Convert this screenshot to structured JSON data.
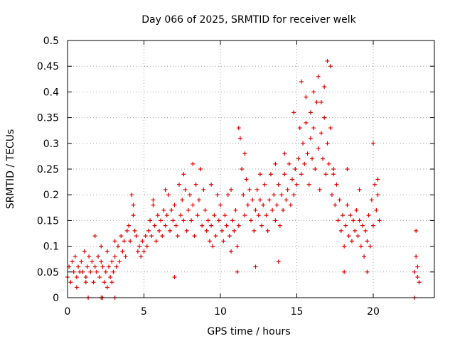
{
  "chart_data": {
    "type": "scatter",
    "title": "Day 066 of 2025, SRMTID for receiver welk",
    "xlabel": "GPS time / hours",
    "ylabel": "SRMTID / TECUs",
    "xlim": [
      0,
      24
    ],
    "ylim": [
      0,
      0.5
    ],
    "grid": true,
    "x_ticks": [
      0,
      5,
      10,
      15,
      20
    ],
    "x_tick_labels": [
      "0",
      "5",
      "10",
      "15",
      "20"
    ],
    "y_ticks": [
      0,
      0.05,
      0.1,
      0.15,
      0.2,
      0.25,
      0.3,
      0.35,
      0.4,
      0.45,
      0.5
    ],
    "y_tick_labels": [
      "0",
      "0.05",
      "0.1",
      "0.15",
      "0.2",
      "0.25",
      "0.3",
      "0.35",
      "0.4",
      "0.45",
      "0.5"
    ],
    "marker": "plus",
    "series": [
      {
        "name": "SRMTID",
        "color": "#e00000",
        "points": [
          [
            0.0,
            0.04
          ],
          [
            0.1,
            0.06
          ],
          [
            0.2,
            0.03
          ],
          [
            0.3,
            0.07
          ],
          [
            0.4,
            0.05
          ],
          [
            0.5,
            0.08
          ],
          [
            0.6,
            0.04
          ],
          [
            0.7,
            0.06
          ],
          [
            0.8,
            0.05
          ],
          [
            0.9,
            0.07
          ],
          [
            1.0,
            0.05
          ],
          [
            1.1,
            0.09
          ],
          [
            1.2,
            0.04
          ],
          [
            1.3,
            0.06
          ],
          [
            1.4,
            0.08
          ],
          [
            1.5,
            0.05
          ],
          [
            1.6,
            0.07
          ],
          [
            1.7,
            0.03
          ],
          [
            1.8,
            0.06
          ],
          [
            1.9,
            0.05
          ],
          [
            2.0,
            0.08
          ],
          [
            2.1,
            0.04
          ],
          [
            2.2,
            0.07
          ],
          [
            2.3,
            0.06
          ],
          [
            2.4,
            0.03
          ],
          [
            2.5,
            0.05
          ],
          [
            2.6,
            0.09
          ],
          [
            2.7,
            0.06
          ],
          [
            2.8,
            0.04
          ],
          [
            2.9,
            0.07
          ],
          [
            3.0,
            0.05
          ],
          [
            3.1,
            0.08
          ],
          [
            3.2,
            0.06
          ],
          [
            3.3,
            0.1
          ],
          [
            3.4,
            0.07
          ],
          [
            3.5,
            0.12
          ],
          [
            3.6,
            0.09
          ],
          [
            3.7,
            0.11
          ],
          [
            3.8,
            0.08
          ],
          [
            3.9,
            0.13
          ],
          [
            4.0,
            0.14
          ],
          [
            4.1,
            0.11
          ],
          [
            4.2,
            0.2
          ],
          [
            4.3,
            0.16
          ],
          [
            4.4,
            0.13
          ],
          [
            4.5,
            0.12
          ],
          [
            4.6,
            0.09
          ],
          [
            4.7,
            0.1
          ],
          [
            4.8,
            0.08
          ],
          [
            4.9,
            0.11
          ],
          [
            5.0,
            0.09
          ],
          [
            5.1,
            0.12
          ],
          [
            5.2,
            0.1
          ],
          [
            5.3,
            0.13
          ],
          [
            5.4,
            0.15
          ],
          [
            5.5,
            0.12
          ],
          [
            5.6,
            0.18
          ],
          [
            5.7,
            0.14
          ],
          [
            5.8,
            0.11
          ],
          [
            5.9,
            0.16
          ],
          [
            6.0,
            0.13
          ],
          [
            6.1,
            0.15
          ],
          [
            6.2,
            0.12
          ],
          [
            6.3,
            0.17
          ],
          [
            6.4,
            0.14
          ],
          [
            6.5,
            0.16
          ],
          [
            6.6,
            0.2
          ],
          [
            6.7,
            0.13
          ],
          [
            6.8,
            0.17
          ],
          [
            6.9,
            0.15
          ],
          [
            7.0,
            0.18
          ],
          [
            7.1,
            0.14
          ],
          [
            7.2,
            0.12
          ],
          [
            7.3,
            0.22
          ],
          [
            7.4,
            0.16
          ],
          [
            7.5,
            0.19
          ],
          [
            7.6,
            0.15
          ],
          [
            7.7,
            0.21
          ],
          [
            7.8,
            0.13
          ],
          [
            7.9,
            0.17
          ],
          [
            8.0,
            0.2
          ],
          [
            8.1,
            0.15
          ],
          [
            8.2,
            0.18
          ],
          [
            8.3,
            0.12
          ],
          [
            8.4,
            0.22
          ],
          [
            8.5,
            0.16
          ],
          [
            8.6,
            0.19
          ],
          [
            8.7,
            0.25
          ],
          [
            8.8,
            0.14
          ],
          [
            8.9,
            0.21
          ],
          [
            9.0,
            0.17
          ],
          [
            9.1,
            0.13
          ],
          [
            9.2,
            0.15
          ],
          [
            9.3,
            0.11
          ],
          [
            9.4,
            0.14
          ],
          [
            9.5,
            0.1
          ],
          [
            9.6,
            0.16
          ],
          [
            9.7,
            0.12
          ],
          [
            9.8,
            0.2
          ],
          [
            9.9,
            0.15
          ],
          [
            10.0,
            0.18
          ],
          [
            10.1,
            0.13
          ],
          [
            10.2,
            0.11
          ],
          [
            10.3,
            0.16
          ],
          [
            10.4,
            0.14
          ],
          [
            10.5,
            0.2
          ],
          [
            10.6,
            0.12
          ],
          [
            10.7,
            0.09
          ],
          [
            10.8,
            0.15
          ],
          [
            10.9,
            0.13
          ],
          [
            11.0,
            0.17
          ],
          [
            11.1,
            0.1
          ],
          [
            11.2,
            0.14
          ],
          [
            11.3,
            0.31
          ],
          [
            11.4,
            0.25
          ],
          [
            11.5,
            0.2
          ],
          [
            11.6,
            0.16
          ],
          [
            11.7,
            0.23
          ],
          [
            11.8,
            0.18
          ],
          [
            11.9,
            0.21
          ],
          [
            12.0,
            0.15
          ],
          [
            12.1,
            0.19
          ],
          [
            12.2,
            0.13
          ],
          [
            12.3,
            0.17
          ],
          [
            12.4,
            0.21
          ],
          [
            12.5,
            0.16
          ],
          [
            12.6,
            0.19
          ],
          [
            12.7,
            0.14
          ],
          [
            12.8,
            0.18
          ],
          [
            12.9,
            0.22
          ],
          [
            13.0,
            0.16
          ],
          [
            13.1,
            0.13
          ],
          [
            13.2,
            0.19
          ],
          [
            13.3,
            0.24
          ],
          [
            13.4,
            0.17
          ],
          [
            13.5,
            0.2
          ],
          [
            13.6,
            0.15
          ],
          [
            13.7,
            0.18
          ],
          [
            13.8,
            0.22
          ],
          [
            13.9,
            0.14
          ],
          [
            14.0,
            0.2
          ],
          [
            14.1,
            0.17
          ],
          [
            14.2,
            0.24
          ],
          [
            14.3,
            0.19
          ],
          [
            14.4,
            0.21
          ],
          [
            14.5,
            0.26
          ],
          [
            14.6,
            0.18
          ],
          [
            14.7,
            0.23
          ],
          [
            14.8,
            0.2
          ],
          [
            14.9,
            0.25
          ],
          [
            15.0,
            0.22
          ],
          [
            15.1,
            0.27
          ],
          [
            15.2,
            0.33
          ],
          [
            15.3,
            0.24
          ],
          [
            15.4,
            0.3
          ],
          [
            15.5,
            0.26
          ],
          [
            15.6,
            0.34
          ],
          [
            15.7,
            0.28
          ],
          [
            15.8,
            0.22
          ],
          [
            15.9,
            0.31
          ],
          [
            16.0,
            0.27
          ],
          [
            16.1,
            0.33
          ],
          [
            16.2,
            0.25
          ],
          [
            16.3,
            0.38
          ],
          [
            16.4,
            0.29
          ],
          [
            16.5,
            0.21
          ],
          [
            16.6,
            0.32
          ],
          [
            16.7,
            0.27
          ],
          [
            16.8,
            0.35
          ],
          [
            16.9,
            0.24
          ],
          [
            17.0,
            0.3
          ],
          [
            17.1,
            0.26
          ],
          [
            17.2,
            0.33
          ],
          [
            17.3,
            0.2
          ],
          [
            17.4,
            0.25
          ],
          [
            17.5,
            0.18
          ],
          [
            17.6,
            0.22
          ],
          [
            17.7,
            0.15
          ],
          [
            17.8,
            0.19
          ],
          [
            17.9,
            0.13
          ],
          [
            18.0,
            0.16
          ],
          [
            18.1,
            0.1
          ],
          [
            18.2,
            0.14
          ],
          [
            18.3,
            0.18
          ],
          [
            18.4,
            0.12
          ],
          [
            18.5,
            0.16
          ],
          [
            18.6,
            0.11
          ],
          [
            18.7,
            0.15
          ],
          [
            18.8,
            0.13
          ],
          [
            18.9,
            0.17
          ],
          [
            19.0,
            0.12
          ],
          [
            19.1,
            0.15
          ],
          [
            19.2,
            0.1
          ],
          [
            19.3,
            0.14
          ],
          [
            19.4,
            0.08
          ],
          [
            19.5,
            0.13
          ],
          [
            19.6,
            0.11
          ],
          [
            19.7,
            0.16
          ],
          [
            19.8,
            0.1
          ],
          [
            19.9,
            0.19
          ],
          [
            20.0,
            0.14
          ],
          [
            20.1,
            0.22
          ],
          [
            20.2,
            0.17
          ],
          [
            20.3,
            0.2
          ],
          [
            20.4,
            0.15
          ],
          [
            22.7,
            0.05
          ],
          [
            22.8,
            0.13
          ],
          [
            22.8,
            0.08
          ],
          [
            22.9,
            0.04
          ],
          [
            22.9,
            0.06
          ],
          [
            23.0,
            0.03
          ],
          [
            1.8,
            0.12
          ],
          [
            2.2,
            0.1
          ],
          [
            3.1,
            0.11
          ],
          [
            4.3,
            0.18
          ],
          [
            5.6,
            0.19
          ],
          [
            6.4,
            0.21
          ],
          [
            7.6,
            0.24
          ],
          [
            8.2,
            0.26
          ],
          [
            9.4,
            0.22
          ],
          [
            10.7,
            0.21
          ],
          [
            11.2,
            0.33
          ],
          [
            11.6,
            0.28
          ],
          [
            12.6,
            0.24
          ],
          [
            13.6,
            0.26
          ],
          [
            14.2,
            0.28
          ],
          [
            14.8,
            0.36
          ],
          [
            15.3,
            0.42
          ],
          [
            15.6,
            0.39
          ],
          [
            16.1,
            0.4
          ],
          [
            16.4,
            0.43
          ],
          [
            16.8,
            0.41
          ],
          [
            17.0,
            0.46
          ],
          [
            17.2,
            0.45
          ],
          [
            16.6,
            0.38
          ],
          [
            17.4,
            0.24
          ],
          [
            18.3,
            0.25
          ],
          [
            19.1,
            0.21
          ],
          [
            20.0,
            0.3
          ],
          [
            20.3,
            0.23
          ],
          [
            15.9,
            0.36
          ],
          [
            2.6,
            0.02
          ],
          [
            2.9,
            0.03
          ],
          [
            0.6,
            0.02
          ],
          [
            1.2,
            0.03
          ],
          [
            7.0,
            0.04
          ],
          [
            11.1,
            0.05
          ],
          [
            12.3,
            0.06
          ],
          [
            18.1,
            0.05
          ],
          [
            19.6,
            0.05
          ],
          [
            13.8,
            0.07
          ],
          [
            1.35,
            0.0
          ],
          [
            2.2,
            0.0
          ],
          [
            2.3,
            0.0
          ],
          [
            3.1,
            0.0
          ],
          [
            22.7,
            0.0
          ]
        ]
      }
    ]
  }
}
